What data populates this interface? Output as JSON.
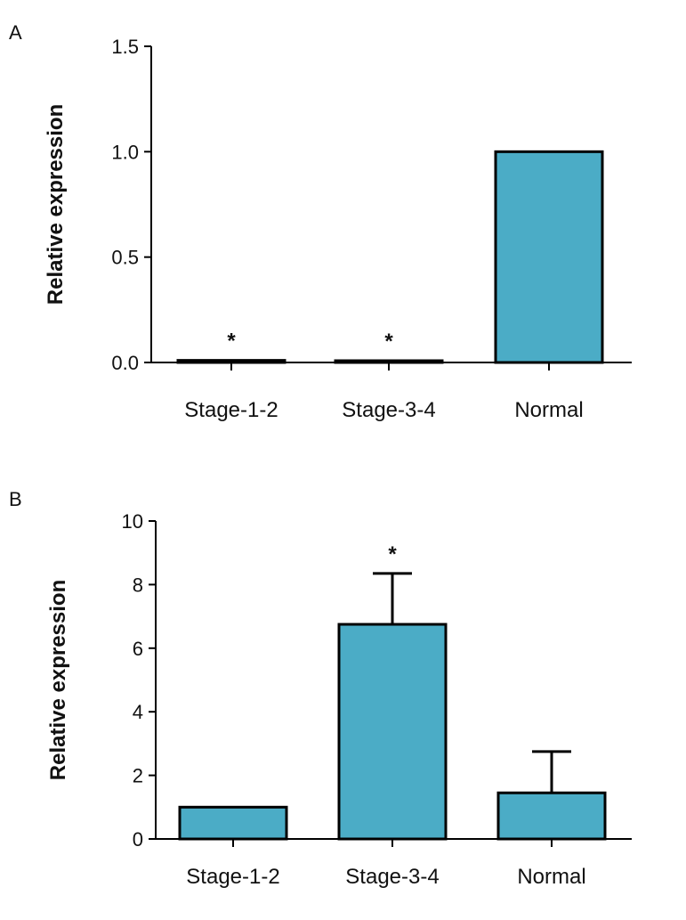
{
  "chart_data": [
    {
      "panel": "A",
      "type": "bar",
      "title": "",
      "xlabel": "",
      "ylabel": "Relative expression",
      "categories": [
        "Stage-1-2",
        "Stage-3-4",
        "Normal"
      ],
      "values": [
        0.01,
        0.005,
        1.0
      ],
      "errors": [
        0,
        0,
        0
      ],
      "annotations": [
        "*",
        "*",
        ""
      ],
      "ylim": [
        0,
        1.5
      ],
      "yticks": [
        0.0,
        0.5,
        1.0,
        1.5
      ],
      "ytick_labels": [
        "0.0",
        "0.5",
        "1.0",
        "1.5"
      ],
      "bar_color": "#4BACC6"
    },
    {
      "panel": "B",
      "type": "bar",
      "title": "",
      "xlabel": "",
      "ylabel": "Relative expression",
      "categories": [
        "Stage-1-2",
        "Stage-3-4",
        "Normal"
      ],
      "values": [
        1.0,
        6.75,
        1.45
      ],
      "errors": [
        0,
        1.6,
        1.3
      ],
      "annotations": [
        "",
        "*",
        ""
      ],
      "ylim": [
        0,
        10
      ],
      "yticks": [
        0,
        2,
        4,
        6,
        8,
        10
      ],
      "ytick_labels": [
        "0",
        "2",
        "4",
        "6",
        "8",
        "10"
      ],
      "bar_color": "#4BACC6"
    }
  ]
}
